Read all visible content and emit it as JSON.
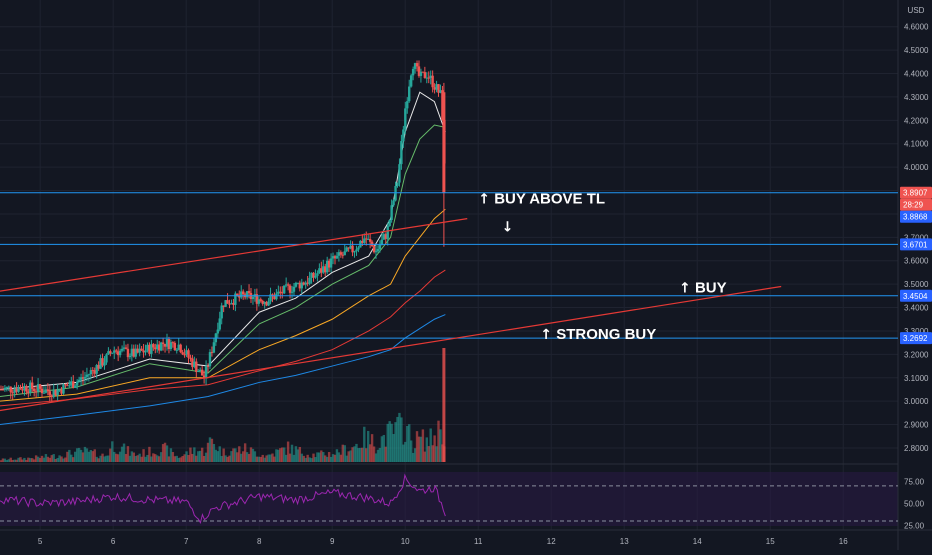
{
  "app": {
    "currency_badge": "USD"
  },
  "chart_data": {
    "type": "candlestick",
    "price_axis": {
      "ticks": [
        "4.6000",
        "4.5000",
        "4.4000",
        "4.3000",
        "4.2000",
        "4.1000",
        "4.0000",
        "3.9000",
        "3.8000",
        "3.7000",
        "3.6000",
        "3.5000",
        "3.4000",
        "3.3000",
        "3.2000",
        "3.1000",
        "3.0000",
        "2.9000",
        "2.8000"
      ],
      "tick_values": [
        4.6,
        4.5,
        4.4,
        4.3,
        4.2,
        4.1,
        4.0,
        3.9,
        3.8,
        3.7,
        3.6,
        3.5,
        3.4,
        3.3,
        3.2,
        3.1,
        3.0,
        2.9,
        2.8
      ],
      "range": [
        2.74,
        4.68
      ]
    },
    "rsi_axis": {
      "ticks": [
        "75.00",
        "50.00",
        "25.00"
      ],
      "tick_values": [
        75,
        50,
        25
      ],
      "range": [
        22,
        88
      ],
      "bands": [
        70,
        30
      ]
    },
    "time_axis": {
      "labels": [
        "5",
        "6",
        "7",
        "8",
        "9",
        "10",
        "11",
        "12",
        "13",
        "14",
        "15",
        "16"
      ],
      "values": [
        5,
        6,
        7,
        8,
        9,
        10,
        11,
        12,
        13,
        14,
        15,
        16
      ],
      "range": [
        4.45,
        16.75
      ]
    },
    "price_labels": [
      {
        "text": "3.8907",
        "value": 3.8907,
        "color": "#ef5350"
      },
      {
        "text": "28:29",
        "value": 3.8907,
        "color": "#ef5350"
      },
      {
        "text": "3.8868",
        "value": 3.8868,
        "color": "#2962ff"
      },
      {
        "text": "3.6701",
        "value": 3.6701,
        "color": "#2962ff"
      },
      {
        "text": "3.4504",
        "value": 3.4504,
        "color": "#2962ff"
      },
      {
        "text": "3.2692",
        "value": 3.2692,
        "color": "#2962ff"
      }
    ],
    "horizontal_levels": [
      3.8907,
      3.6701,
      3.4504,
      3.2692
    ],
    "trendlines": [
      {
        "x": [
          4.45,
          10.85
        ],
        "y": [
          3.47,
          3.78
        ],
        "color": "#e53935"
      },
      {
        "x": [
          4.45,
          15.15
        ],
        "y": [
          2.96,
          3.49
        ],
        "color": "#e53935"
      }
    ],
    "annotations": [
      {
        "text": "BUY ABOVE TL",
        "x": 11.0,
        "y": 3.845,
        "arrow": "up"
      },
      {
        "text": "",
        "x": 11.32,
        "y": 3.725,
        "arrow": "down"
      },
      {
        "text": "BUY",
        "x": 13.75,
        "y": 3.465,
        "arrow": "up"
      },
      {
        "text": "STRONG BUY",
        "x": 11.85,
        "y": 3.265,
        "arrow": "up"
      }
    ],
    "anchors": {
      "t": [
        4.45,
        4.8,
        5.2,
        5.6,
        5.9,
        6.0,
        6.3,
        6.7,
        6.9,
        7.1,
        7.25,
        7.35,
        7.5,
        7.8,
        8.1,
        8.4,
        8.7,
        9.0,
        9.3,
        9.45,
        9.6,
        9.75,
        9.9,
        10.0,
        10.1,
        10.2,
        10.3,
        10.4,
        10.5,
        10.55
      ],
      "p": [
        3.05,
        3.06,
        3.04,
        3.1,
        3.18,
        3.22,
        3.2,
        3.25,
        3.24,
        3.16,
        3.1,
        3.22,
        3.42,
        3.45,
        3.43,
        3.48,
        3.52,
        3.6,
        3.65,
        3.7,
        3.64,
        3.72,
        3.95,
        4.25,
        4.45,
        4.38,
        4.4,
        4.35,
        4.3,
        3.89
      ],
      "vol": [
        0.04,
        0.06,
        0.1,
        0.18,
        0.1,
        0.3,
        0.12,
        0.22,
        0.08,
        0.2,
        0.18,
        0.36,
        0.16,
        0.22,
        0.1,
        0.24,
        0.12,
        0.14,
        0.26,
        0.4,
        0.3,
        0.45,
        0.55,
        0.62,
        0.3,
        0.4,
        0.34,
        0.42,
        0.6,
        0.35
      ]
    },
    "overlay_series": [
      {
        "t": [
          4.45,
          5.5,
          6.5,
          7.3,
          8.0,
          8.5,
          9.0,
          9.5,
          9.8,
          10.0,
          10.2,
          10.4,
          10.55
        ],
        "p": [
          3.05,
          3.08,
          3.18,
          3.15,
          3.38,
          3.44,
          3.55,
          3.62,
          3.78,
          4.15,
          4.32,
          4.28,
          4.15
        ],
        "color": "#e8e8e8"
      },
      {
        "t": [
          4.45,
          5.5,
          6.5,
          7.3,
          8.0,
          8.5,
          9.0,
          9.5,
          9.8,
          10.0,
          10.2,
          10.4,
          10.55
        ],
        "p": [
          3.02,
          3.06,
          3.16,
          3.12,
          3.33,
          3.4,
          3.5,
          3.58,
          3.7,
          3.97,
          4.12,
          4.18,
          4.17
        ],
        "color": "#66bb6a"
      },
      {
        "t": [
          4.45,
          5.5,
          6.5,
          7.3,
          8.0,
          8.5,
          9.0,
          9.5,
          9.8,
          10.0,
          10.2,
          10.4,
          10.55
        ],
        "p": [
          3.0,
          3.03,
          3.1,
          3.1,
          3.22,
          3.28,
          3.35,
          3.45,
          3.5,
          3.62,
          3.7,
          3.78,
          3.82
        ],
        "color": "#f9a825"
      },
      {
        "t": [
          4.45,
          5.5,
          6.5,
          7.3,
          8.0,
          8.5,
          9.0,
          9.5,
          9.8,
          10.0,
          10.2,
          10.4,
          10.55
        ],
        "p": [
          2.98,
          3.01,
          3.05,
          3.07,
          3.13,
          3.17,
          3.22,
          3.3,
          3.36,
          3.42,
          3.47,
          3.53,
          3.56
        ],
        "color": "#e53935"
      },
      {
        "t": [
          4.45,
          5.5,
          6.5,
          7.3,
          8.0,
          8.5,
          9.0,
          9.5,
          9.8,
          10.0,
          10.2,
          10.4,
          10.55
        ],
        "p": [
          2.9,
          2.94,
          2.98,
          3.02,
          3.08,
          3.11,
          3.15,
          3.19,
          3.22,
          3.27,
          3.31,
          3.35,
          3.37
        ],
        "color": "#1e88e5"
      }
    ],
    "rsi_series": {
      "t": [
        4.45,
        5.0,
        5.5,
        6.0,
        6.5,
        7.0,
        7.2,
        7.4,
        8.0,
        8.5,
        9.0,
        9.5,
        9.8,
        10.0,
        10.2,
        10.4,
        10.55
      ],
      "v": [
        55,
        50,
        52,
        58,
        54,
        52,
        32,
        45,
        58,
        54,
        62,
        56,
        50,
        78,
        64,
        68,
        40
      ],
      "color": "#9c27b0"
    },
    "colors": {
      "up": "#26a69a",
      "down": "#ef5350",
      "level": "#2196f3"
    }
  }
}
